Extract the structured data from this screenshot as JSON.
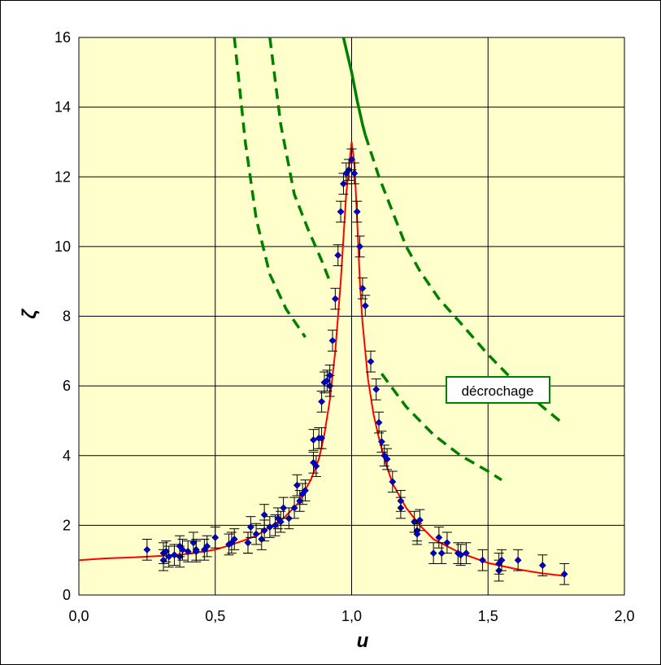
{
  "chart_data": {
    "type": "scatter",
    "xlabel": "u",
    "ylabel": "ζ",
    "xlim": [
      0,
      2
    ],
    "ylim": [
      0,
      16
    ],
    "grid": true,
    "x_ticks": [
      "0,0",
      "0,5",
      "1,0",
      "1,5",
      "2,0"
    ],
    "y_ticks": [
      "0",
      "2",
      "4",
      "6",
      "8",
      "10",
      "12",
      "14",
      "16"
    ],
    "colors": {
      "plot_background": "#ffffcc",
      "points": "#0000cc",
      "fit": "#ff0000",
      "dashed": "#008000",
      "grid": "#000000"
    },
    "annotation": "décrochage",
    "series": [
      {
        "kind": "points",
        "x": [
          0.25,
          0.31,
          0.31,
          0.32,
          0.33,
          0.35,
          0.37,
          0.37,
          0.38,
          0.4,
          0.42,
          0.43,
          0.43,
          0.46,
          0.47,
          0.5,
          0.55,
          0.56,
          0.57,
          0.62,
          0.62,
          0.63,
          0.65,
          0.67,
          0.68,
          0.68,
          0.7,
          0.72,
          0.73,
          0.74,
          0.75,
          0.77,
          0.79,
          0.8,
          0.81,
          0.82,
          0.83,
          0.86,
          0.86,
          0.87,
          0.88,
          0.89,
          0.89,
          0.9,
          0.91,
          0.92,
          0.92,
          0.93,
          0.94,
          0.95,
          0.96,
          0.97,
          0.98,
          0.99,
          1.0,
          1.01,
          1.02,
          1.03,
          1.04,
          1.05,
          1.07,
          1.09,
          1.1,
          1.11,
          1.12,
          1.13,
          1.15,
          1.18,
          1.18,
          1.23,
          1.24,
          1.24,
          1.25,
          1.3,
          1.32,
          1.33,
          1.35,
          1.39,
          1.4,
          1.42,
          1.48,
          1.54,
          1.54,
          1.55,
          1.61,
          1.7,
          1.78
        ],
        "y": [
          1.3,
          1.2,
          1.0,
          1.25,
          1.1,
          1.15,
          1.1,
          1.4,
          1.3,
          1.25,
          1.5,
          1.3,
          1.25,
          1.3,
          1.4,
          1.65,
          1.45,
          1.5,
          1.6,
          1.5,
          1.5,
          1.95,
          1.75,
          1.6,
          1.85,
          2.3,
          1.95,
          2.0,
          2.2,
          2.1,
          2.5,
          2.2,
          2.5,
          3.15,
          2.7,
          2.9,
          3.0,
          3.8,
          4.45,
          3.7,
          4.5,
          4.5,
          5.55,
          6.1,
          6.15,
          6.0,
          6.3,
          7.3,
          8.5,
          9.75,
          11.0,
          11.8,
          12.1,
          12.2,
          12.5,
          12.1,
          11.0,
          10.0,
          8.8,
          8.3,
          6.7,
          5.9,
          4.95,
          4.4,
          4.0,
          3.9,
          3.25,
          2.5,
          2.7,
          2.1,
          1.85,
          1.75,
          2.15,
          1.2,
          1.65,
          1.2,
          1.5,
          1.2,
          1.15,
          1.2,
          1.0,
          0.9,
          0.7,
          1.0,
          1.0,
          0.85,
          0.6
        ],
        "yerr": 0.3
      },
      {
        "kind": "fit",
        "x": [
          0.0,
          0.1,
          0.2,
          0.3,
          0.4,
          0.5,
          0.55,
          0.6,
          0.65,
          0.7,
          0.75,
          0.8,
          0.85,
          0.88,
          0.9,
          0.92,
          0.94,
          0.96,
          0.98,
          1.0,
          1.01,
          1.02,
          1.03,
          1.04,
          1.06,
          1.08,
          1.1,
          1.12,
          1.15,
          1.2,
          1.25,
          1.3,
          1.4,
          1.5,
          1.6,
          1.7,
          1.78
        ],
        "y": [
          1.0,
          1.05,
          1.08,
          1.12,
          1.18,
          1.3,
          1.42,
          1.55,
          1.7,
          1.95,
          2.2,
          2.6,
          3.3,
          3.9,
          4.6,
          5.6,
          7.0,
          9.0,
          11.5,
          13.0,
          12.4,
          10.8,
          9.0,
          7.8,
          6.2,
          5.2,
          4.5,
          3.9,
          3.2,
          2.5,
          2.0,
          1.6,
          1.2,
          0.92,
          0.75,
          0.62,
          0.55
        ]
      },
      {
        "kind": "dashed",
        "x": [
          0.57,
          0.61,
          0.65,
          0.7,
          0.76,
          0.83
        ],
        "y": [
          16.0,
          13.0,
          10.8,
          9.2,
          8.2,
          7.4
        ]
      },
      {
        "kind": "dashed",
        "x": [
          0.7,
          0.74,
          0.79,
          0.84,
          0.89,
          0.92
        ],
        "y": [
          16.0,
          13.5,
          11.5,
          10.5,
          9.6,
          9.0
        ]
      },
      {
        "kind": "solid",
        "x": [
          0.97,
          1.0,
          1.02,
          1.04,
          1.05
        ],
        "y": [
          16.0,
          15.0,
          14.2,
          13.5,
          13.2
        ]
      },
      {
        "kind": "dashed",
        "x": [
          1.05,
          1.1,
          1.15,
          1.2,
          1.25,
          1.32,
          1.4,
          1.5,
          1.6,
          1.7,
          1.77
        ],
        "y": [
          13.2,
          12.0,
          11.0,
          10.0,
          9.3,
          8.5,
          7.8,
          6.9,
          6.1,
          5.4,
          4.95
        ]
      },
      {
        "kind": "dashed",
        "x": [
          1.11,
          1.2,
          1.3,
          1.4,
          1.5,
          1.55
        ],
        "y": [
          6.35,
          5.4,
          4.6,
          4.0,
          3.55,
          3.3
        ]
      }
    ]
  }
}
